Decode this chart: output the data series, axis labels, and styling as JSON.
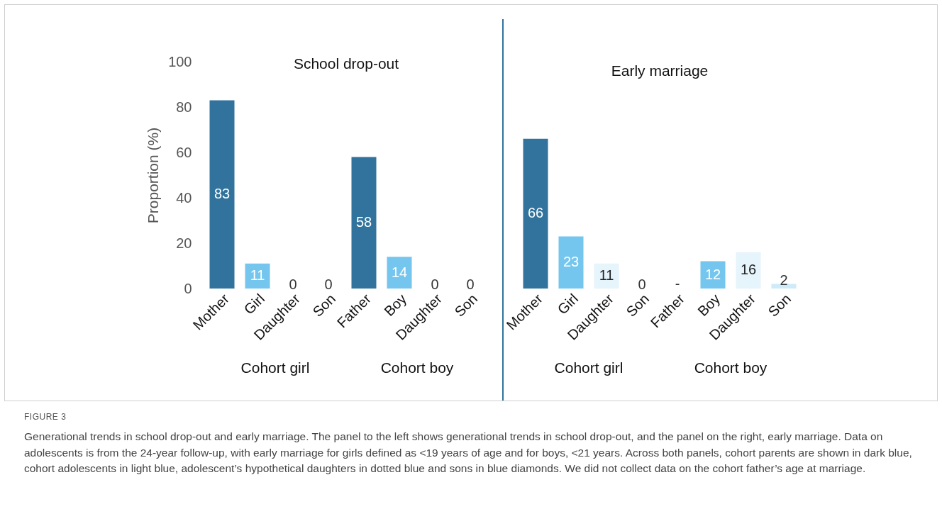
{
  "chart_data": [
    {
      "type": "bar",
      "title": "School drop-out",
      "ylabel": "Proportion (%)",
      "categories": [
        "Mother",
        "Girl",
        "Daughter",
        "Son",
        "Father",
        "Boy",
        "Daughter",
        "Son"
      ],
      "values": [
        83,
        11,
        0,
        0,
        58,
        14,
        0,
        0
      ],
      "colors": [
        "#31739c",
        "#74c6ee",
        "#e6f4fb",
        "#cfeaf8",
        "#31739c",
        "#74c6ee",
        "#e6f4fb",
        "#cfeaf8"
      ],
      "ylim": [
        0,
        100
      ],
      "yticks": [
        0,
        20,
        40,
        60,
        80,
        100
      ],
      "data_labels": true,
      "grid": false,
      "annotations": [
        "Cohort girl",
        "Cohort boy",
        "FIGURE 3",
        "Generational trends in school drop-out and early marriage. The panel to the left shows generational trends in school drop-out, and the panel on the right, early marriage. Data on adolescents is from the 24-year follow-up, with early marriage for girls defined as <19 years of age and for boys, <21 years. Across both panels, cohort parents are shown in dark blue, cohort adolescents in light blue, adolescent’s hypothetical daughters in dotted blue and sons in blue diamonds. We did not collect data on the cohort father’s age at marriage."
      ]
    },
    {
      "type": "bar",
      "title": "Early marriage",
      "categories": [
        "Mother",
        "Girl",
        "Daughter",
        "Son",
        "Father",
        "Boy",
        "Daughter",
        "Son"
      ],
      "values": [
        66,
        23,
        11,
        0,
        null,
        12,
        16,
        2
      ],
      "value_labels": [
        "66",
        "23",
        "11",
        "0",
        "-",
        "12",
        "16",
        "2"
      ],
      "colors": [
        "#31739c",
        "#74c6ee",
        "#e6f4fb",
        "#cfeaf8",
        "#31739c",
        "#74c6ee",
        "#e6f4fb",
        "#cfeaf8"
      ],
      "ylim": [
        0,
        100
      ],
      "yticks": [
        0,
        20,
        40,
        60,
        80,
        100
      ],
      "tick_labels": "x",
      "grid": false,
      "annotations": [
        "Cohort girl",
        "Cohort boy"
      ]
    }
  ]
}
